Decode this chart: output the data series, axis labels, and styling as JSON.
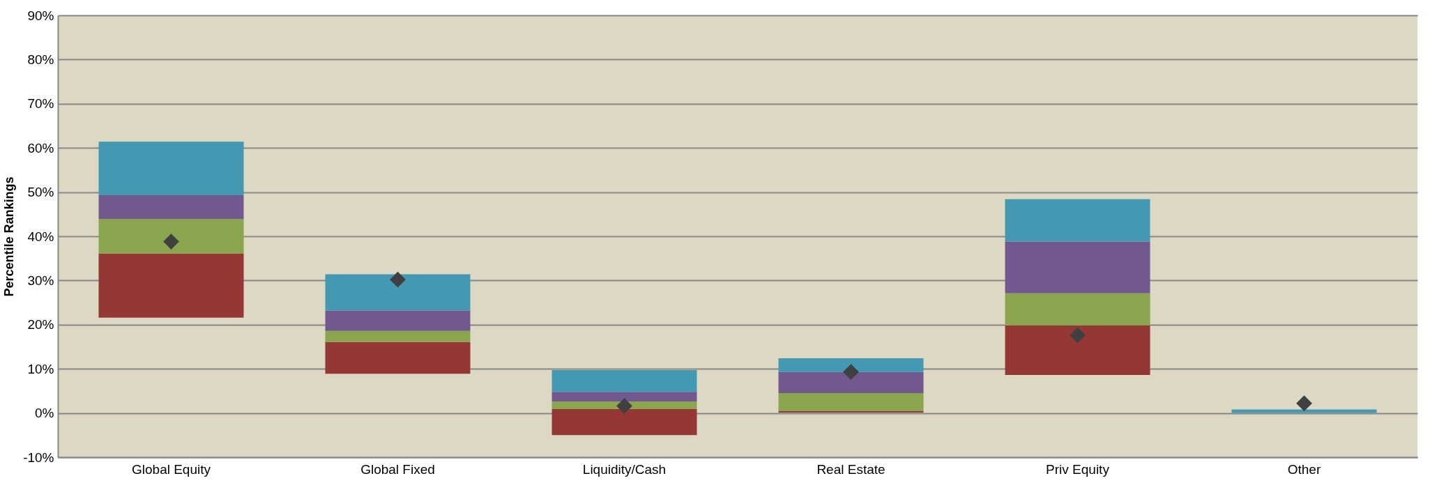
{
  "chart_data": {
    "type": "bar",
    "ylabel": "Percentile Rankings",
    "categories": [
      "Global Equity",
      "Global Fixed",
      "Liquidity/Cash",
      "Real Estate",
      "Priv Equity",
      "Other"
    ],
    "series": [
      {
        "color": "#953735",
        "base": [
          21.6,
          8.9,
          -5.0,
          0.1,
          8.6,
          null
        ],
        "values": [
          14.5,
          7.2,
          5.9,
          0.4,
          11.2,
          null
        ]
      },
      {
        "color": "#89a54e",
        "base": [
          36.1,
          16.1,
          0.9,
          0.5,
          19.8,
          null
        ],
        "values": [
          7.8,
          2.5,
          1.7,
          4.0,
          7.3,
          null
        ]
      },
      {
        "color": "#71588f",
        "base": [
          43.9,
          18.6,
          2.6,
          4.5,
          27.1,
          null
        ],
        "values": [
          5.4,
          4.6,
          2.2,
          4.8,
          11.7,
          null
        ]
      },
      {
        "color": "#4299b1",
        "base": [
          49.3,
          23.2,
          4.8,
          9.3,
          38.8,
          0
        ],
        "values": [
          12.1,
          8.2,
          4.9,
          3.1,
          9.6,
          0.8
        ]
      },
      {
        "type": "scatter",
        "marker": "diamond",
        "color": "#404040",
        "x": [
          "Global Equity",
          "Global Fixed",
          "Liquidity/Cash",
          "Real Estate",
          "Priv Equity",
          "Other"
        ],
        "values": [
          38.8,
          30.2,
          1.6,
          9.3,
          17.6,
          2.2
        ]
      }
    ],
    "ylim": [
      -10,
      90
    ],
    "yticks": [
      {
        "value": -10,
        "label": "-10%"
      },
      {
        "value": 0,
        "label": "0%"
      },
      {
        "value": 10,
        "label": "10%"
      },
      {
        "value": 20,
        "label": "20%"
      },
      {
        "value": 30,
        "label": "30%"
      },
      {
        "value": 40,
        "label": "40%"
      },
      {
        "value": 50,
        "label": "50%"
      },
      {
        "value": 60,
        "label": "60%"
      },
      {
        "value": 70,
        "label": "70%"
      },
      {
        "value": 80,
        "label": "80%"
      },
      {
        "value": 90,
        "label": "90%"
      }
    ],
    "grid": "y"
  }
}
